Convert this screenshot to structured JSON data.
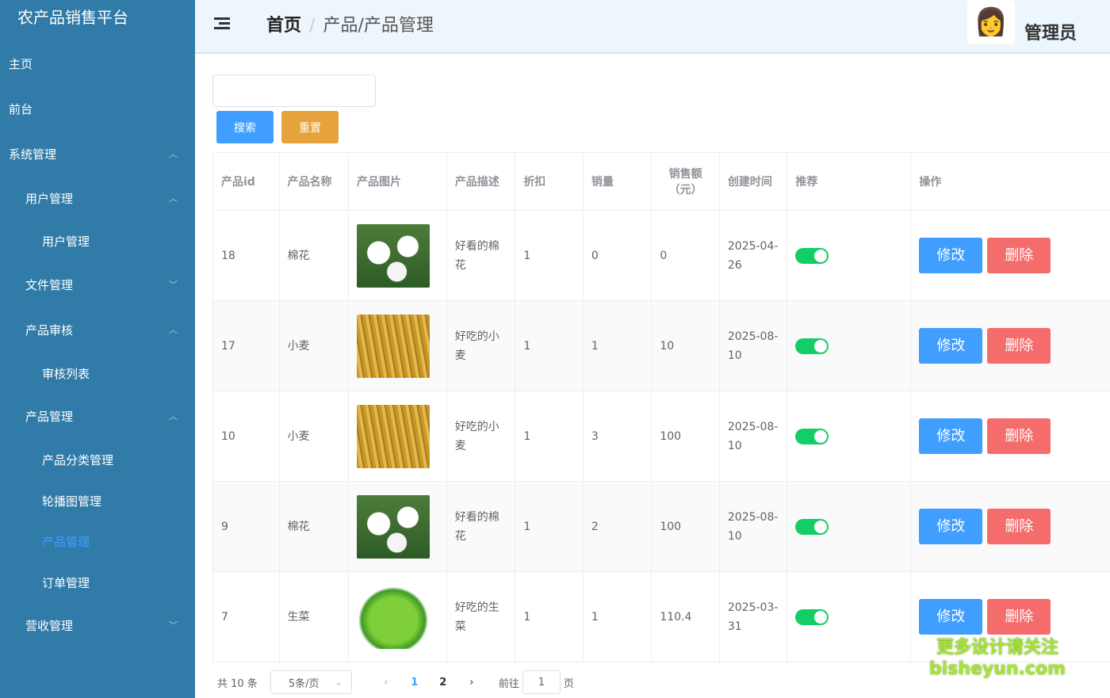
{
  "sidebar": {
    "brand": "农产品销售平台",
    "items": [
      {
        "label": "主页",
        "level": 0
      },
      {
        "label": "前台",
        "level": 0
      },
      {
        "label": "系统管理",
        "level": 0,
        "chevron": "up"
      },
      {
        "label": "用户管理",
        "level": 1,
        "chevron": "up"
      },
      {
        "label": "用户管理",
        "level": 2
      },
      {
        "label": "文件管理",
        "level": 1,
        "chevron": "down"
      },
      {
        "label": "产品审核",
        "level": 1,
        "chevron": "up"
      },
      {
        "label": "审核列表",
        "level": 2
      },
      {
        "label": "产品管理",
        "level": 1,
        "chevron": "up"
      },
      {
        "label": "产品分类管理",
        "level": 2
      },
      {
        "label": "轮播图管理",
        "level": 2
      },
      {
        "label": "产品管理",
        "level": 2,
        "active": true
      },
      {
        "label": "订单管理",
        "level": 2
      },
      {
        "label": "营收管理",
        "level": 1,
        "chevron": "down"
      }
    ]
  },
  "header": {
    "breadcrumb_home": "首页",
    "breadcrumb_sep": "/",
    "breadcrumb_current": "产品/产品管理",
    "user": "管理员"
  },
  "search": {
    "value": "",
    "placeholder": "",
    "search_label": "搜索",
    "reset_label": "重置"
  },
  "table": {
    "columns": [
      "产品id",
      "产品名称",
      "产品图片",
      "产品描述",
      "折扣",
      "销量",
      "销售额（元）",
      "创建时间",
      "推荐",
      "操作"
    ],
    "rows": [
      {
        "id": "18",
        "name": "棉花",
        "image": "cotton",
        "desc": "好看的棉花",
        "discount": "1",
        "sales": "0",
        "revenue": "0",
        "created": "2025-04-26",
        "recommended": true
      },
      {
        "id": "17",
        "name": "小麦",
        "image": "wheat",
        "desc": "好吃的小麦",
        "discount": "1",
        "sales": "1",
        "revenue": "10",
        "created": "2025-08-10",
        "recommended": true
      },
      {
        "id": "10",
        "name": "小麦",
        "image": "wheat",
        "desc": "好吃的小麦",
        "discount": "1",
        "sales": "3",
        "revenue": "100",
        "created": "2025-08-10",
        "recommended": true
      },
      {
        "id": "9",
        "name": "棉花",
        "image": "cotton",
        "desc": "好看的棉花",
        "discount": "1",
        "sales": "2",
        "revenue": "100",
        "created": "2025-08-10",
        "recommended": true
      },
      {
        "id": "7",
        "name": "生菜",
        "image": "lettuce",
        "desc": "好吃的生菜",
        "discount": "1",
        "sales": "1",
        "revenue": "110.4",
        "created": "2025-03-31",
        "recommended": true
      }
    ],
    "edit_label": "修改",
    "delete_label": "删除"
  },
  "pagination": {
    "total": "共 10 条",
    "page_size": "5条/页",
    "pages": [
      "1",
      "2"
    ],
    "current": "1",
    "goto_label": "前往",
    "goto_value": "1",
    "page_suffix": "页"
  },
  "watermark": {
    "line1": "更多设计请关注",
    "line2": "bisheyun.com"
  },
  "colors": {
    "sidebar": "#307ba8",
    "primary": "#409eff",
    "warning": "#e6a23c",
    "danger": "#f56c6c",
    "switch_on": "#13ce66"
  }
}
